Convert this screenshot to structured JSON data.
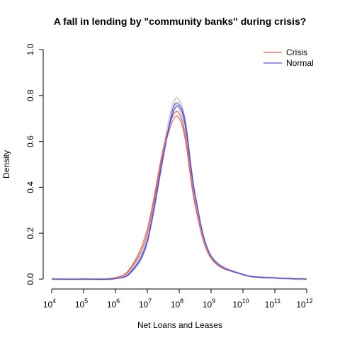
{
  "chart_data": {
    "type": "line",
    "title": "A fall in lending by \"community banks\" during crisis?",
    "xlabel": "Net Loans and Leases",
    "ylabel": "Density",
    "x_scale": "log10",
    "xlim": [
      10000,
      1000000000000
    ],
    "ylim": [
      0,
      1
    ],
    "x_ticks": [
      {
        "base": "10",
        "exp": "4",
        "value": 10000
      },
      {
        "base": "10",
        "exp": "5",
        "value": 100000
      },
      {
        "base": "10",
        "exp": "6",
        "value": 1000000
      },
      {
        "base": "10",
        "exp": "7",
        "value": 10000000
      },
      {
        "base": "10",
        "exp": "8",
        "value": 100000000
      },
      {
        "base": "10",
        "exp": "9",
        "value": 1000000000
      },
      {
        "base": "10",
        "exp": "10",
        "value": 10000000000
      },
      {
        "base": "10",
        "exp": "11",
        "value": 100000000000
      },
      {
        "base": "10",
        "exp": "12",
        "value": 1000000000000
      }
    ],
    "y_ticks": [
      "0.0",
      "0.2",
      "0.4",
      "0.6",
      "0.8",
      "1.0"
    ],
    "legend": {
      "position": "top-right"
    },
    "colors": {
      "Crisis": "#e8604c",
      "Normal": "#5050e6",
      "background": "#cccccc"
    },
    "series": [
      {
        "name": "Crisis",
        "color": "#e8604c",
        "x": [
          10000,
          100000,
          1000000,
          3162278,
          10000000,
          31622777,
          63095734,
          100000000,
          158489319,
          316227766,
          1000000000,
          10000000000,
          100000000000,
          1000000000000
        ],
        "y": [
          0.0,
          0.0,
          0.005,
          0.05,
          0.2,
          0.55,
          0.69,
          0.7,
          0.6,
          0.32,
          0.09,
          0.02,
          0.005,
          0.0
        ]
      },
      {
        "name": "Crisis",
        "color": "#e8604c",
        "x": [
          10000,
          100000,
          1000000,
          3162278,
          10000000,
          31622777,
          63095734,
          100000000,
          158489319,
          316227766,
          1000000000,
          10000000000,
          100000000000,
          1000000000000
        ],
        "y": [
          0.0,
          0.0,
          0.006,
          0.055,
          0.22,
          0.57,
          0.71,
          0.72,
          0.62,
          0.33,
          0.09,
          0.02,
          0.005,
          0.0
        ]
      },
      {
        "name": "Normal",
        "color": "#5050e6",
        "x": [
          10000,
          100000,
          1000000,
          3162278,
          10000000,
          31622777,
          63095734,
          100000000,
          158489319,
          316227766,
          1000000000,
          10000000000,
          100000000000,
          1000000000000
        ],
        "y": [
          0.0,
          0.0,
          0.002,
          0.035,
          0.17,
          0.54,
          0.72,
          0.75,
          0.66,
          0.36,
          0.1,
          0.02,
          0.005,
          0.0
        ]
      },
      {
        "name": "Normal",
        "color": "#5050e6",
        "x": [
          10000,
          100000,
          1000000,
          3162278,
          10000000,
          31622777,
          63095734,
          100000000,
          158489319,
          316227766,
          1000000000,
          10000000000,
          100000000000,
          1000000000000
        ],
        "y": [
          0.0,
          0.0,
          0.002,
          0.03,
          0.16,
          0.53,
          0.74,
          0.76,
          0.68,
          0.37,
          0.1,
          0.02,
          0.005,
          0.0
        ]
      },
      {
        "name": "",
        "color": "#cccccc",
        "x": [
          10000,
          100000,
          1000000,
          3162278,
          10000000,
          31622777,
          63095734,
          100000000,
          158489319,
          316227766,
          1000000000,
          10000000000,
          100000000000,
          1000000000000
        ],
        "y": [
          0.0,
          0.0,
          0.003,
          0.04,
          0.19,
          0.56,
          0.76,
          0.78,
          0.67,
          0.35,
          0.1,
          0.02,
          0.005,
          0.0
        ]
      },
      {
        "name": "",
        "color": "#cccccc",
        "x": [
          10000,
          100000,
          1000000,
          3162278,
          10000000,
          31622777,
          63095734,
          100000000,
          158489319,
          316227766,
          1000000000,
          10000000000,
          100000000000,
          1000000000000
        ],
        "y": [
          0.0,
          0.0,
          0.004,
          0.045,
          0.18,
          0.55,
          0.74,
          0.74,
          0.63,
          0.34,
          0.1,
          0.02,
          0.005,
          0.0
        ]
      }
    ]
  }
}
